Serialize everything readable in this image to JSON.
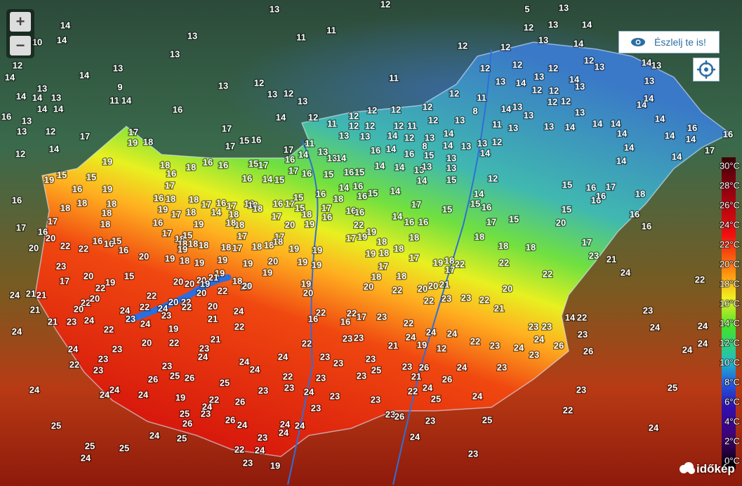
{
  "controls": {
    "zoom_in": "+",
    "zoom_out": "−"
  },
  "report_button": "Észlelj te is!",
  "logo": "időkép",
  "legend": [
    "30°C",
    "28°C",
    "26°C",
    "24°C",
    "22°C",
    "20°C",
    "18°C",
    "16°C",
    "14°C",
    "12°C",
    "10°C",
    "8°C",
    "6°C",
    "4°C",
    "2°C",
    "0°C"
  ],
  "stations": [
    13,
    12,
    5,
    13,
    14,
    13,
    11,
    11,
    12,
    13,
    14,
    10,
    14,
    12,
    12,
    13,
    14,
    12,
    13,
    14,
    14,
    13,
    12,
    12,
    12,
    12,
    13,
    14,
    13,
    11,
    13,
    12,
    13,
    12,
    9,
    13,
    14,
    14,
    13,
    11,
    14,
    13,
    14,
    13,
    12,
    12,
    14,
    13,
    13,
    13,
    12,
    11,
    16,
    14,
    14,
    16,
    13,
    13,
    12,
    14,
    12,
    12,
    12,
    12,
    12,
    8,
    14,
    13,
    12,
    12,
    13,
    14,
    14,
    11,
    12,
    12,
    12,
    11,
    12,
    13,
    11,
    13,
    13,
    13,
    14,
    14,
    14,
    14,
    16,
    16,
    17,
    17,
    17,
    19,
    18,
    17,
    15,
    16,
    11,
    13,
    13,
    14,
    12,
    13,
    14,
    14,
    14,
    14,
    12,
    14,
    17,
    14,
    13,
    13,
    14,
    16,
    14,
    16,
    8,
    15,
    14,
    13,
    13,
    12,
    14,
    14,
    17,
    14,
    14,
    19,
    18,
    18,
    16,
    16,
    15,
    17,
    16,
    17,
    16,
    15,
    14,
    14,
    13,
    13,
    13,
    13,
    12,
    15,
    19,
    15,
    16,
    16,
    14,
    15,
    16,
    15,
    14,
    16,
    15,
    14,
    14,
    15,
    14,
    15,
    16,
    17,
    18,
    16,
    19,
    17,
    16,
    18,
    18,
    18,
    16,
    18,
    19,
    18,
    17,
    16,
    17,
    18,
    18,
    16,
    17,
    15,
    15,
    16,
    17,
    18,
    16,
    15,
    16,
    16,
    16,
    15,
    16,
    17,
    17,
    18,
    18,
    17,
    14,
    18,
    18,
    18,
    17,
    18,
    16,
    16,
    16,
    14,
    17,
    16,
    16,
    15,
    15,
    20,
    17,
    16,
    16,
    16,
    18,
    17,
    18,
    19,
    18,
    17,
    17,
    20,
    19,
    22,
    19,
    20,
    20,
    22,
    22,
    16,
    16,
    15,
    16,
    15,
    18,
    18,
    18,
    19,
    18,
    17,
    18,
    18,
    18,
    19,
    19,
    17,
    19,
    18,
    18,
    18,
    18,
    18,
    18,
    17,
    20,
    19,
    18,
    19,
    19,
    19,
    20,
    19,
    19,
    19,
    18,
    17,
    17,
    19,
    18,
    22,
    22,
    23,
    21,
    23,
    20,
    17,
    19,
    22,
    15,
    19,
    20,
    19,
    18,
    20,
    21,
    20,
    20,
    19,
    19,
    18,
    18,
    17,
    21,
    20,
    22,
    24,
    22,
    24,
    21,
    21,
    22,
    20,
    22,
    20,
    22,
    20,
    22,
    20,
    20,
    20,
    22,
    20,
    20,
    23,
    22,
    22,
    23,
    21,
    21,
    20,
    24,
    22,
    24,
    22,
    20,
    24,
    22,
    22,
    23,
    23,
    21,
    23,
    24,
    23,
    24,
    23,
    21,
    22,
    16,
    16,
    17,
    14,
    22,
    23,
    23,
    24,
    24,
    24,
    22,
    19,
    22,
    24,
    24,
    24,
    24,
    23,
    23,
    23,
    22,
    21,
    20,
    21,
    19,
    12,
    22,
    23,
    24,
    26,
    26,
    24,
    24,
    24,
    23,
    23,
    22,
    23,
    23,
    24,
    24,
    24,
    23,
    23,
    23,
    22,
    23,
    24,
    25,
    23,
    23,
    26,
    24,
    23,
    23,
    25,
    26,
    26,
    25,
    22,
    23,
    21,
    26,
    23,
    24,
    23,
    22,
    24,
    24,
    24,
    24,
    24,
    19,
    22,
    26,
    23,
    23,
    25,
    24,
    23,
    25,
    24,
    23,
    25,
    23,
    23,
    26,
    23,
    25,
    22,
    26,
    24,
    25,
    26,
    24,
    24,
    24,
    24,
    25,
    23,
    24,
    24,
    25,
    25,
    22,
    24,
    23,
    24,
    23,
    19
  ]
}
